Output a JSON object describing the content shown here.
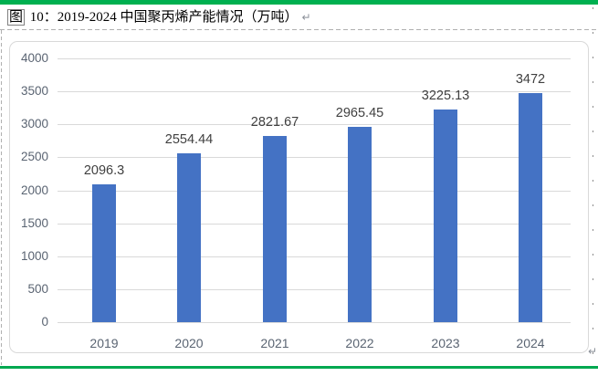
{
  "caption": {
    "boxed_char": "图",
    "text": " 10：2019-2024 中国聚丙烯产能情况（万吨）",
    "paragraph_mark": "↵"
  },
  "chart_data": {
    "type": "bar",
    "title": "图 10：2019-2024 中国聚丙烯产能情况（万吨）",
    "categories": [
      "2019",
      "2020",
      "2021",
      "2022",
      "2023",
      "2024"
    ],
    "values": [
      2096.3,
      2554.44,
      2821.67,
      2965.45,
      3225.13,
      3472
    ],
    "data_labels": [
      "2096.3",
      "2554.44",
      "2821.67",
      "2965.45",
      "3225.13",
      "3472"
    ],
    "xlabel": "",
    "ylabel": "",
    "unit": "万吨",
    "ylim": [
      0,
      4000
    ],
    "ytick_interval": 500,
    "yticks": [
      0,
      500,
      1000,
      1500,
      2000,
      2500,
      3000,
      3500,
      4000
    ],
    "grid": true,
    "legend_position": "none",
    "bar_color": "#4472C4",
    "gridline_color": "#D9D9D9",
    "axis_label_color": "#5A6472",
    "data_label_color": "#404040"
  },
  "colors": {
    "page_border_green": "#00B050",
    "chart_frame_border": "#D9D9D9",
    "dashed_cell_border": "#B0B0B0",
    "caption_text": "#000000"
  }
}
